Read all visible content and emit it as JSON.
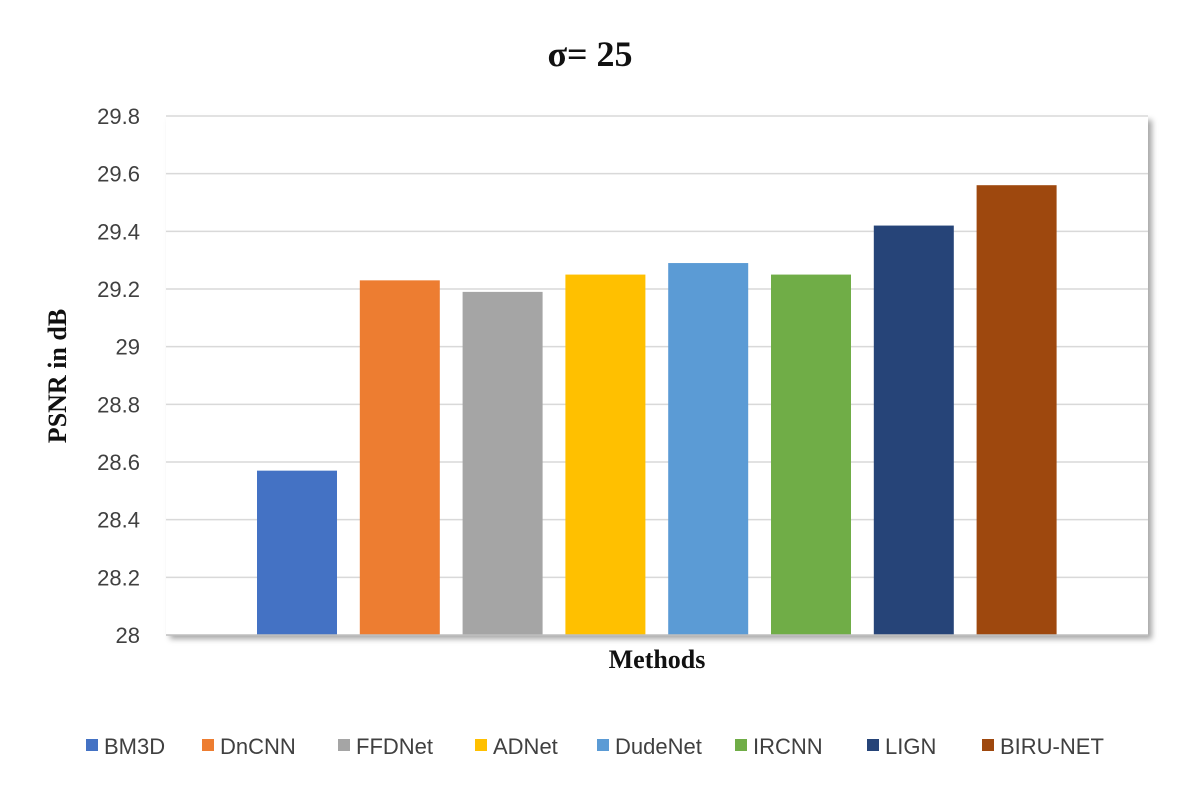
{
  "chart_data": {
    "type": "bar",
    "title": "σ= 25",
    "xlabel": "Methods",
    "ylabel": "PSNR in dB",
    "ylim": [
      28,
      29.8
    ],
    "yticks": [
      "28",
      "28.2",
      "28.4",
      "28.6",
      "28.8",
      "29",
      "29.2",
      "29.4",
      "29.6",
      "29.8"
    ],
    "grid": true,
    "legend_position": "bottom",
    "series": [
      {
        "name": "BM3D",
        "value": 28.57,
        "color": "#4472C4"
      },
      {
        "name": "DnCNN",
        "value": 29.23,
        "color": "#ED7D31"
      },
      {
        "name": "FFDNet",
        "value": 29.19,
        "color": "#A5A5A5"
      },
      {
        "name": "ADNet",
        "value": 29.25,
        "color": "#FFC000"
      },
      {
        "name": "DudeNet",
        "value": 29.29,
        "color": "#5B9BD5"
      },
      {
        "name": "IRCNN",
        "value": 29.25,
        "color": "#70AD47"
      },
      {
        "name": "LIGN",
        "value": 29.42,
        "color": "#264478"
      },
      {
        "name": "BIRU-NET",
        "value": 29.56,
        "color": "#9E480E"
      }
    ]
  }
}
